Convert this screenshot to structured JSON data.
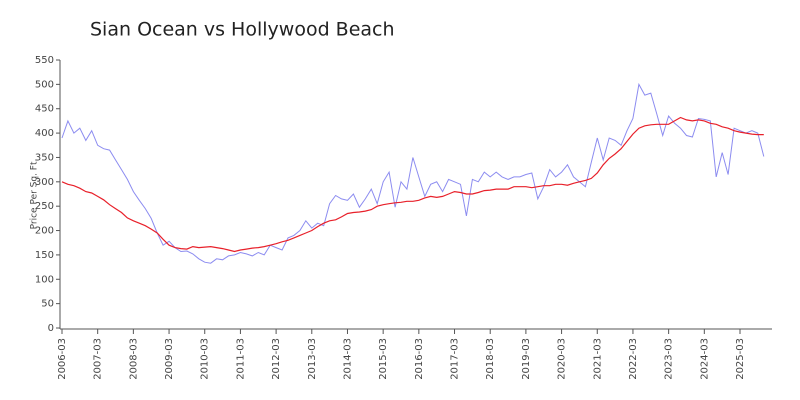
{
  "chart_data": {
    "type": "line",
    "title": "Sian Ocean vs Hollywood Beach",
    "y_label": "Price Per Sq. Ft.",
    "x": [
      "2006-03",
      "2006-05",
      "2006-07",
      "2006-09",
      "2006-11",
      "2007-01",
      "2007-03",
      "2007-05",
      "2007-07",
      "2007-09",
      "2007-11",
      "2008-01",
      "2008-03",
      "2008-05",
      "2008-07",
      "2008-09",
      "2008-11",
      "2009-01",
      "2009-03",
      "2009-05",
      "2009-07",
      "2009-09",
      "2009-11",
      "2010-01",
      "2010-03",
      "2010-05",
      "2010-07",
      "2010-09",
      "2010-11",
      "2011-01",
      "2011-03",
      "2011-05",
      "2011-07",
      "2011-09",
      "2011-11",
      "2012-01",
      "2012-03",
      "2012-05",
      "2012-07",
      "2012-09",
      "2012-11",
      "2013-01",
      "2013-03",
      "2013-05",
      "2013-07",
      "2013-09",
      "2013-11",
      "2014-01",
      "2014-03",
      "2014-05",
      "2014-07",
      "2014-09",
      "2014-11",
      "2015-01",
      "2015-03",
      "2015-05",
      "2015-07",
      "2015-09",
      "2015-11",
      "2016-01",
      "2016-03",
      "2016-05",
      "2016-07",
      "2016-09",
      "2016-11",
      "2017-01",
      "2017-03",
      "2017-05",
      "2017-07",
      "2017-09",
      "2017-11",
      "2018-01",
      "2018-03",
      "2018-05",
      "2018-07",
      "2018-09",
      "2018-11",
      "2019-01",
      "2019-03",
      "2019-05",
      "2019-07",
      "2019-09",
      "2019-11",
      "2020-01",
      "2020-03",
      "2020-05",
      "2020-07",
      "2020-09",
      "2020-11",
      "2021-01",
      "2021-03",
      "2021-05",
      "2021-07",
      "2021-09",
      "2021-11",
      "2022-01",
      "2022-03",
      "2022-05",
      "2022-07",
      "2022-09",
      "2022-11",
      "2023-01",
      "2023-03",
      "2023-05",
      "2023-07",
      "2023-09",
      "2023-11",
      "2024-01",
      "2024-03",
      "2024-05",
      "2024-07",
      "2024-09",
      "2024-11",
      "2025-01",
      "2025-03",
      "2025-05",
      "2025-07",
      "2025-09",
      "2025-11"
    ],
    "series": [
      {
        "color": "#8c8cf0",
        "values": [
          390,
          425,
          400,
          410,
          385,
          405,
          375,
          368,
          365,
          345,
          325,
          305,
          280,
          262,
          245,
          225,
          195,
          170,
          178,
          165,
          157,
          158,
          152,
          142,
          135,
          133,
          142,
          140,
          148,
          150,
          155,
          152,
          148,
          155,
          150,
          170,
          165,
          160,
          185,
          190,
          200,
          220,
          205,
          215,
          210,
          255,
          272,
          265,
          262,
          275,
          248,
          265,
          285,
          255,
          300,
          320,
          248,
          300,
          285,
          350,
          310,
          270,
          295,
          300,
          280,
          305,
          300,
          295,
          230,
          305,
          300,
          320,
          310,
          320,
          310,
          305,
          310,
          310,
          315,
          318,
          265,
          290,
          325,
          310,
          320,
          335,
          310,
          300,
          290,
          340,
          390,
          345,
          390,
          385,
          375,
          405,
          430,
          500,
          478,
          482,
          440,
          395,
          435,
          420,
          410,
          395,
          392,
          430,
          428,
          425,
          310,
          360,
          315,
          410,
          405,
          400,
          405,
          400,
          352
        ]
      },
      {
        "color": "#e8202a",
        "values": [
          300,
          295,
          292,
          287,
          280,
          277,
          270,
          263,
          253,
          245,
          237,
          226,
          220,
          215,
          210,
          203,
          195,
          182,
          170,
          165,
          163,
          162,
          167,
          165,
          166,
          167,
          165,
          163,
          160,
          157,
          160,
          162,
          164,
          165,
          167,
          170,
          173,
          177,
          180,
          185,
          190,
          195,
          200,
          208,
          215,
          220,
          222,
          228,
          235,
          237,
          238,
          240,
          243,
          250,
          253,
          255,
          257,
          258,
          260,
          260,
          262,
          267,
          270,
          268,
          270,
          275,
          280,
          278,
          275,
          275,
          278,
          282,
          283,
          285,
          285,
          285,
          290,
          290,
          290,
          288,
          290,
          292,
          292,
          295,
          295,
          293,
          297,
          300,
          303,
          307,
          318,
          335,
          348,
          357,
          368,
          383,
          398,
          410,
          415,
          417,
          418,
          418,
          418,
          425,
          432,
          427,
          425,
          427,
          425,
          420,
          418,
          413,
          410,
          405,
          402,
          400,
          398,
          397,
          397
        ]
      }
    ],
    "xticks": [
      "2006-03",
      "2007-03",
      "2008-03",
      "2009-03",
      "2010-03",
      "2011-03",
      "2012-03",
      "2013-03",
      "2014-03",
      "2015-03",
      "2016-03",
      "2017-03",
      "2018-03",
      "2019-03",
      "2020-03",
      "2021-03",
      "2022-03",
      "2023-03",
      "2024-03",
      "2025-03"
    ],
    "ylim": [
      0,
      550
    ],
    "yticks": [
      0,
      50,
      100,
      150,
      200,
      250,
      300,
      350,
      400,
      450,
      500,
      550
    ],
    "grid": false
  }
}
